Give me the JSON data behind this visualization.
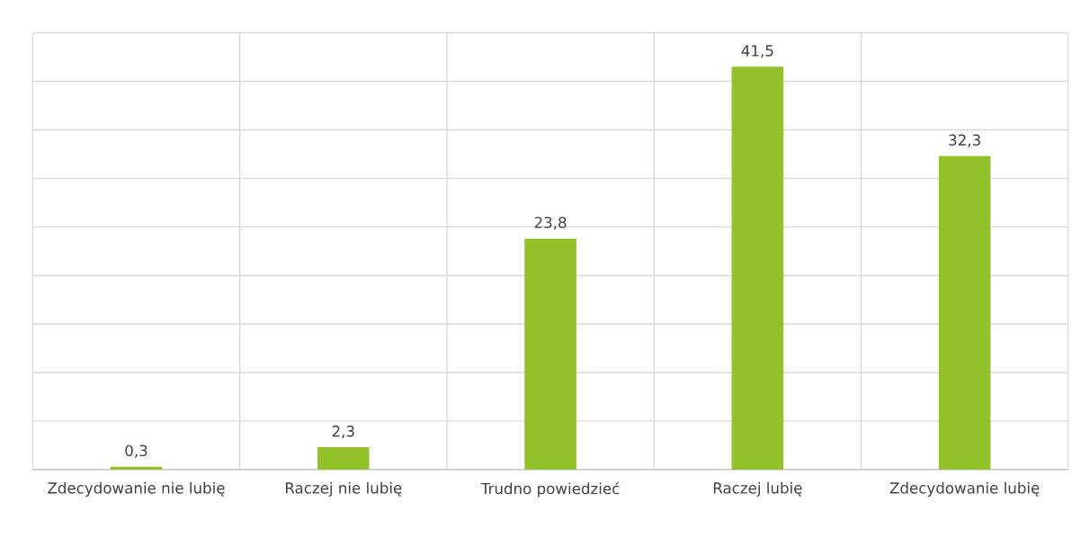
{
  "chart_data": {
    "type": "bar",
    "categories": [
      "Zdecydowanie nie lubię",
      "Raczej nie lubię",
      "Trudno powiedzieć",
      "Raczej lubię",
      "Zdecydowanie lubię"
    ],
    "values": [
      0.3,
      2.3,
      23.8,
      41.5,
      32.3
    ],
    "value_labels": [
      "0,3",
      "2,3",
      "23,8",
      "41,5",
      "32,3"
    ],
    "color": "#92c12a",
    "ylim": [
      0,
      45
    ],
    "yticks": [
      {
        "value": 0,
        "label": null
      },
      {
        "value": 5,
        "label": null
      },
      {
        "value": 10,
        "label": null
      },
      {
        "value": 15,
        "label": null
      },
      {
        "value": 20,
        "label": null
      },
      {
        "value": 25,
        "label": null
      },
      {
        "value": 30,
        "label": null
      },
      {
        "value": 35,
        "label": null
      },
      {
        "value": 40,
        "label": null
      },
      {
        "value": 45,
        "label": null
      }
    ],
    "tick_labels": "x",
    "grid": true
  }
}
